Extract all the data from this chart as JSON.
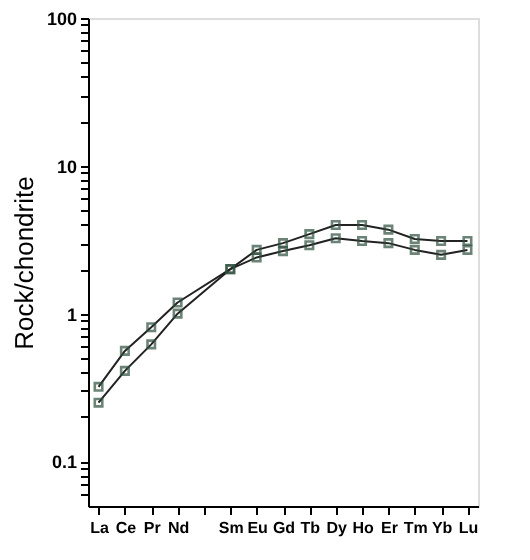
{
  "chart_data": {
    "type": "line",
    "ylabel": "Rock/chondrite",
    "categories": [
      "La",
      "Ce",
      "Pr",
      "Nd",
      null,
      "Sm",
      "Eu",
      "Gd",
      "Tb",
      "Dy",
      "Ho",
      "Er",
      "Tm",
      "Yb",
      "Lu"
    ],
    "series": [
      {
        "color": "#2f4f3f",
        "values": [
          0.32,
          0.56,
          0.81,
          1.19,
          null,
          2.0,
          2.4,
          2.65,
          2.9,
          3.24,
          3.1,
          3.0,
          2.7,
          2.5,
          2.7
        ]
      },
      {
        "color": "#2f4f3f",
        "values": [
          0.25,
          0.41,
          0.62,
          1.0,
          null,
          2.0,
          2.7,
          3.0,
          3.45,
          3.98,
          3.98,
          3.7,
          3.2,
          3.1,
          3.1
        ]
      }
    ],
    "log": true,
    "ylim": [
      0.05,
      100
    ],
    "yticks": [
      {
        "value": 0.06,
        "label": null
      },
      {
        "value": 0.07,
        "label": null
      },
      {
        "value": 0.08,
        "label": null
      },
      {
        "value": 0.09,
        "label": null
      },
      0.1,
      {
        "value": 0.2,
        "label": null
      },
      {
        "value": 0.3,
        "label": null
      },
      {
        "value": 0.4,
        "label": null
      },
      {
        "value": 0.5,
        "label": null
      },
      {
        "value": 0.6,
        "label": null
      },
      {
        "value": 0.7,
        "label": null
      },
      {
        "value": 0.8,
        "label": null
      },
      {
        "value": 0.9,
        "label": null
      },
      1,
      {
        "value": 2,
        "label": null
      },
      {
        "value": 3,
        "label": null
      },
      {
        "value": 4,
        "label": null
      },
      {
        "value": 5,
        "label": null
      },
      {
        "value": 6,
        "label": null
      },
      {
        "value": 7,
        "label": null
      },
      {
        "value": 8,
        "label": null
      },
      {
        "value": 9,
        "label": null
      },
      10,
      {
        "value": 20,
        "label": null
      },
      {
        "value": 30,
        "label": null
      },
      {
        "value": 40,
        "label": null
      },
      {
        "value": 50,
        "label": null
      },
      {
        "value": 60,
        "label": null
      },
      {
        "value": 70,
        "label": null
      },
      {
        "value": 80,
        "label": null
      },
      {
        "value": 90,
        "label": null
      },
      100
    ],
    "grid": false,
    "legend": false,
    "marker": "square",
    "line_style": "solid"
  }
}
